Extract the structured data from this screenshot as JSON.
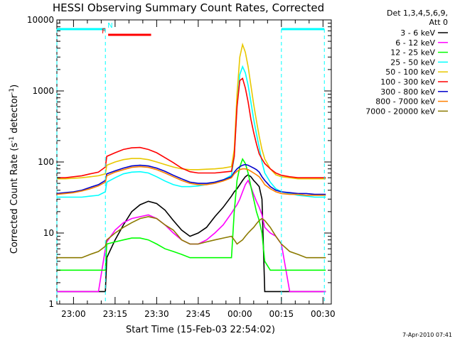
{
  "chart_data": {
    "type": "line",
    "title": "HESSI Observing Summary Count Rates, Corrected",
    "xlabel": "Start Time (15-Feb-03 22:54:02)",
    "ylabel_main": "Corrected Count Rate (s",
    "ylabel_sup1": "-1",
    "ylabel_mid": " detector",
    "ylabel_sup2": "-1",
    "ylabel_end": ")",
    "yscale": "log",
    "ylim": [
      1,
      10000
    ],
    "y_ticks": [
      "1",
      "10",
      "100",
      "1000",
      "10000"
    ],
    "xlim": [
      "22:54",
      "00:33"
    ],
    "x_ticks": [
      "23:00",
      "23:15",
      "23:30",
      "23:45",
      "00:00",
      "00:15",
      "00:30"
    ],
    "x_tick_minutes": [
      6,
      21,
      36,
      51,
      66,
      81,
      96
    ],
    "legend_header": [
      "Det 1,3,4,5,6,9,",
      "Att 0"
    ],
    "legend_placement": "right",
    "footer_date": "7-Apr-2010 07:41",
    "flags": [
      {
        "label": "N",
        "color": "#00ffff",
        "segments": [
          [
            0,
            17.5
          ],
          [
            81,
            96.5
          ]
        ]
      },
      {
        "label": "F",
        "color": "#ff0000",
        "segments": [
          [
            18.5,
            34
          ]
        ]
      }
    ],
    "x": [
      0,
      3,
      6,
      9,
      12,
      15,
      17.5,
      18,
      21,
      24,
      27,
      30,
      33,
      36,
      39,
      42,
      45,
      48,
      51,
      54,
      57,
      60,
      63,
      64,
      65,
      66,
      67,
      68,
      69,
      70,
      71,
      72,
      73,
      74,
      75,
      77,
      79,
      81,
      84,
      87,
      90,
      93,
      96,
      97
    ],
    "series": [
      {
        "name": "3 - 6 keV",
        "color": "#000000",
        "values": [
          1.5,
          1.5,
          1.5,
          1.5,
          1.5,
          1.5,
          1.5,
          4.5,
          8,
          13,
          20,
          25,
          28,
          26,
          21,
          15,
          11,
          9,
          10,
          12,
          17,
          23,
          33,
          38,
          42,
          48,
          55,
          62,
          66,
          62,
          55,
          50,
          45,
          30,
          1.5,
          1.5,
          1.5,
          1.5,
          1.5,
          1.5,
          1.5,
          1.5,
          1.5,
          1.5
        ]
      },
      {
        "name": "6 - 12 keV",
        "color": "#ff00ff",
        "values": [
          1.5,
          1.5,
          1.5,
          1.5,
          1.5,
          1.5,
          6,
          7.5,
          11,
          14,
          16,
          17,
          18,
          16,
          13,
          10,
          8,
          7,
          7,
          8,
          10,
          13,
          19,
          22,
          25,
          30,
          38,
          48,
          55,
          45,
          35,
          28,
          23,
          18,
          12,
          10,
          9,
          7,
          1.5,
          1.5,
          1.5,
          1.5,
          1.5,
          1.5
        ]
      },
      {
        "name": "12 - 25 keV",
        "color": "#00ff00",
        "values": [
          3,
          3,
          3,
          3,
          3,
          3,
          3,
          7,
          7.5,
          8,
          8.5,
          8.5,
          8,
          7,
          6,
          5.5,
          5,
          4.5,
          4.5,
          4.5,
          4.5,
          4.5,
          4.5,
          20,
          55,
          85,
          110,
          95,
          70,
          45,
          30,
          20,
          15,
          10,
          4,
          3,
          3,
          3,
          3,
          3,
          3,
          3,
          3,
          3
        ]
      },
      {
        "name": "25 - 50 keV",
        "color": "#00ffff",
        "values": [
          32,
          32,
          32,
          32,
          33,
          34,
          38,
          52,
          60,
          68,
          72,
          73,
          70,
          62,
          54,
          48,
          45,
          45,
          46,
          48,
          52,
          56,
          65,
          120,
          600,
          1700,
          2200,
          1800,
          1200,
          700,
          400,
          250,
          160,
          100,
          70,
          52,
          42,
          38,
          36,
          34,
          33,
          32,
          32,
          32
        ]
      },
      {
        "name": "50 - 100 keV",
        "color": "#e8c800",
        "values": [
          58,
          58,
          59,
          60,
          62,
          64,
          68,
          90,
          100,
          108,
          112,
          112,
          108,
          100,
          92,
          85,
          80,
          78,
          78,
          79,
          80,
          82,
          86,
          150,
          900,
          3000,
          4500,
          3500,
          2200,
          1200,
          650,
          380,
          230,
          150,
          110,
          80,
          66,
          62,
          60,
          58,
          58,
          58,
          58,
          58
        ]
      },
      {
        "name": "100 - 300 keV",
        "color": "#ff0000",
        "values": [
          60,
          60,
          62,
          64,
          68,
          72,
          85,
          120,
          135,
          150,
          158,
          160,
          150,
          135,
          115,
          98,
          82,
          73,
          70,
          70,
          70,
          72,
          74,
          120,
          600,
          1400,
          1500,
          1100,
          700,
          400,
          260,
          180,
          130,
          110,
          95,
          80,
          70,
          65,
          62,
          60,
          60,
          60,
          60,
          60
        ]
      },
      {
        "name": "300 - 800 keV",
        "color": "#0000cc",
        "values": [
          36,
          37,
          38,
          40,
          44,
          48,
          55,
          68,
          75,
          82,
          88,
          90,
          88,
          82,
          74,
          65,
          58,
          52,
          50,
          50,
          52,
          56,
          62,
          72,
          80,
          86,
          90,
          92,
          90,
          86,
          82,
          78,
          72,
          62,
          55,
          45,
          40,
          38,
          37,
          36,
          36,
          35,
          35,
          35
        ]
      },
      {
        "name": "800 - 7000 keV",
        "color": "#ff8000",
        "values": [
          35,
          36,
          37,
          39,
          42,
          46,
          52,
          64,
          72,
          78,
          84,
          86,
          84,
          78,
          70,
          62,
          55,
          50,
          48,
          48,
          50,
          54,
          60,
          68,
          74,
          78,
          80,
          80,
          78,
          74,
          70,
          66,
          62,
          55,
          48,
          42,
          38,
          36,
          35,
          35,
          34,
          34,
          34,
          34
        ]
      },
      {
        "name": "7000 - 20000 keV",
        "color": "#8b7a00",
        "values": [
          4.5,
          4.5,
          4.5,
          4.5,
          5,
          5.5,
          6.5,
          8,
          10,
          12,
          14,
          16,
          17,
          16,
          13,
          11,
          8,
          7,
          7,
          7.5,
          8,
          8.5,
          9,
          8,
          7,
          7.5,
          8,
          9,
          10,
          11,
          12,
          13.5,
          15,
          16,
          15,
          12,
          9,
          7,
          5.5,
          5,
          4.5,
          4.5,
          4.5,
          4.5
        ]
      }
    ]
  }
}
